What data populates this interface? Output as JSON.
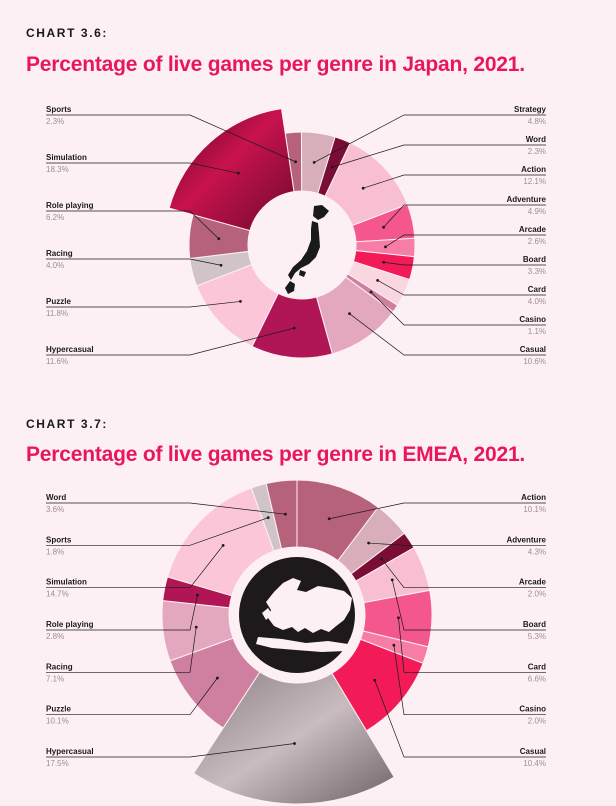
{
  "colors": {
    "accent": "#e8175d",
    "slices": [
      "#b5627a",
      "#d7aeb9",
      "#7a0d35",
      "#f8bfd2",
      "#f4578d",
      "#f67da6",
      "#f21a57",
      "#f9d6e0",
      "#cf7f9f",
      "#e3a8bf",
      "#b01656",
      "#fbc7d8",
      "#d1c4c8"
    ]
  },
  "charts": [
    {
      "label": "CHART 3.6:",
      "title": "Percentage of live games per genre in Japan, 2021."
    },
    {
      "label": "CHART 3.7:",
      "title": "Percentage of live games per genre in EMEA, 2021."
    }
  ],
  "chart_data": [
    {
      "type": "pie",
      "title": "Percentage of live games per genre in Japan, 2021.",
      "map_icon": "japan-map-icon",
      "categories": [
        "Sports",
        "Strategy",
        "Word",
        "Action",
        "Adventure",
        "Arcade",
        "Board",
        "Card",
        "Casino",
        "Casual",
        "Hypercasual",
        "Puzzle",
        "Racing",
        "Role playing",
        "Simulation"
      ],
      "values": [
        2.3,
        4.8,
        2.3,
        12.1,
        4.9,
        2.6,
        3.3,
        4.0,
        1.1,
        10.6,
        11.6,
        11.8,
        4.0,
        6.2,
        18.3
      ],
      "value_labels": [
        "2.3%",
        "4.8%",
        "2.3%",
        "12.1%",
        "4.9%",
        "2.6%",
        "3.3%",
        "4.0%",
        "1.1%",
        "10.6%",
        "11.6%",
        "11.8%",
        "4.0%",
        "6.2%",
        "18.3%"
      ],
      "radius_scale": [
        1,
        1,
        1,
        1,
        1,
        1,
        1,
        1,
        1,
        1,
        1,
        1,
        1,
        1,
        1.22
      ],
      "image_slice": "Simulation"
    },
    {
      "type": "pie",
      "title": "Percentage of live games per genre in EMEA, 2021.",
      "map_icon": "europe-map-icon",
      "categories": [
        "Action",
        "Adventure",
        "Arcade",
        "Board",
        "Card",
        "Casino",
        "Casual",
        "Hypercasual",
        "Puzzle",
        "Racing",
        "Role playing",
        "Simulation",
        "Sports",
        "Word"
      ],
      "values": [
        10.1,
        4.3,
        2.0,
        5.3,
        6.6,
        2.0,
        10.4,
        17.5,
        10.1,
        7.1,
        2.8,
        14.7,
        1.8,
        3.6
      ],
      "value_labels": [
        "10.1%",
        "4.3%",
        "2.0%",
        "5.3%",
        "6.6%",
        "2.0%",
        "10.4%",
        "17.5%",
        "10.1%",
        "7.1%",
        "2.8%",
        "14.7%",
        "1.8%",
        "3.6%"
      ],
      "radius_scale": [
        1,
        1,
        1,
        1,
        1,
        1,
        1,
        1.4,
        1,
        1,
        1,
        1,
        1,
        1
      ],
      "image_slice": "Hypercasual"
    }
  ]
}
